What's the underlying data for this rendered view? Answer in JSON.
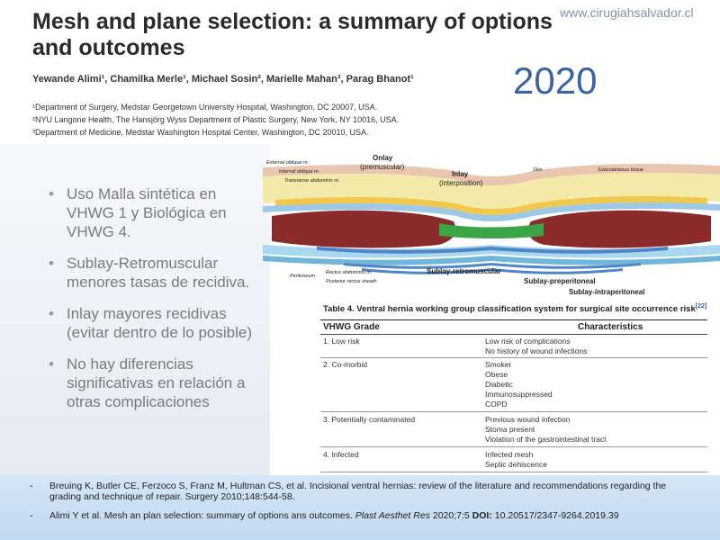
{
  "header": {
    "site_url": "www.cirugiahsalvador.cl",
    "title": "Mesh and plane selection: a summary of options and outcomes",
    "year": "2020",
    "authors": "Yewande Alimi¹, Chamilka Merle¹, Michael Sosin², Marielle Mahan³, Parag Bhanot¹",
    "affiliations": [
      "¹Department of Surgery, Medstar Georgetown University Hospital, Washington, DC 20007, USA.",
      "²NYU Langone Health, The Hansjörg Wyss Department of Plastic Surgery, New York, NY 10016, USA.",
      "³Department of Medicine, Medstar Washington Hospital Center, Washington, DC 20010, USA."
    ]
  },
  "bullets": [
    "Uso Malla sintética en VHWG 1 y Biológica en VHWG 4.",
    "Sublay-Retromuscular menores tasas de recidiva.",
    "Inlay mayores recidivas (evitar dentro de lo posible)",
    "No hay diferencias significativas en relación a otras complicaciones"
  ],
  "diagram": {
    "labels": {
      "external_oblique": "External oblique m.",
      "internal_oblique": "Internal oblique m.",
      "transverse_abdominis": "Transverse abdominis m.",
      "onlay": "Onlay",
      "onlay_sub": "(premuscular)",
      "inlay": "Inlay",
      "inlay_sub": "(interposition)",
      "skin": "Skin",
      "subcutaneous": "Subcutaneous tissue",
      "peritoneum": "Peritoneum",
      "rectus_abdominis": "Rectus abdominis m.",
      "posterior_rectus_sheath": "Posterior rectus sheath",
      "sublay_retromuscular": "Sublay-retromuscular",
      "sublay_preperitoneal": "Sublay-preperitoneal",
      "sublay_intraperitoneal": "Sublay-intraperitoneal"
    },
    "colors": {
      "skin": "#e8c6b0",
      "fat": "#f3e9a8",
      "onlay_mesh": "#f0c84c",
      "fascia": "#9ec9e6",
      "muscle": "#8a2a2a",
      "inlay_mesh": "#3aa447",
      "sheath": "#a9d7ef",
      "peritoneum": "#6fb6d9",
      "sublay_mesh": "#4f86c8"
    }
  },
  "table": {
    "caption": "Table 4. Ventral hernia working group classification system for surgical site occurrence risk",
    "caption_ref": "[22]",
    "col_grade": "VHWG Grade",
    "col_chars": "Characteristics",
    "rows": [
      {
        "grade": "1. Low risk",
        "chars": [
          "Low risk of complications",
          "No history of wound infections"
        ]
      },
      {
        "grade": "2. Co-morbid",
        "chars": [
          "Smoker",
          "Obese",
          "Diabetic",
          "Immunosuppressed",
          "COPD"
        ]
      },
      {
        "grade": "3. Potentially contaminated",
        "chars": [
          "Previous wound infection",
          "Stoma present",
          "Violation of the gastrointestinal tract"
        ]
      },
      {
        "grade": "4. Infected",
        "chars": [
          "Infected mesh",
          "Septic dehiscence"
        ]
      }
    ]
  },
  "references": [
    {
      "dash": "-",
      "text": "Breuing K, Butler CE, Ferzoco S, Franz M, Hultman CS, et al. Incisional ventral hernias: review of the literature and recommendations regarding the grading and technique of repair. Surgery 2010;148:544-58."
    },
    {
      "dash": "-",
      "pre": "Alimi Y et al. Mesh an plan selection: summary of options ans outcomes. ",
      "journal": "Plast Aesthet Res",
      "mid": " 2020;7:5 ",
      "doi_label": "DOI:",
      "doi": " 10.20517/2347-9264.2019.39"
    }
  ]
}
